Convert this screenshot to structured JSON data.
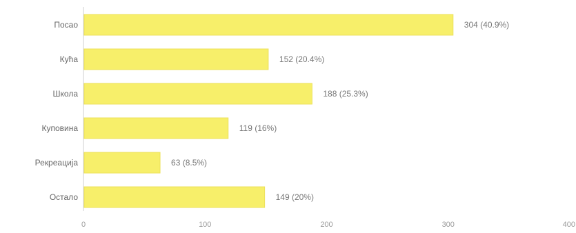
{
  "chart_data": {
    "type": "bar",
    "orientation": "horizontal",
    "categories": [
      "Посао",
      "Кућа",
      "Школа",
      "Куповина",
      "Рекреација",
      "Остало"
    ],
    "values": [
      304,
      152,
      188,
      119,
      63,
      149
    ],
    "data_labels": [
      "304 (40.9%)",
      "152 (20.4%)",
      "188 (25.3%)",
      "119 (16%)",
      "63 (8.5%)",
      "149 (20%)"
    ],
    "xlim": [
      0,
      400
    ],
    "x_ticks": [
      0,
      100,
      200,
      300,
      400
    ],
    "title": "",
    "xlabel": "",
    "ylabel": "",
    "grid": false,
    "legend": "none",
    "bar_color": "#f7ef6a",
    "bar_edge_color": "#ece15a"
  }
}
